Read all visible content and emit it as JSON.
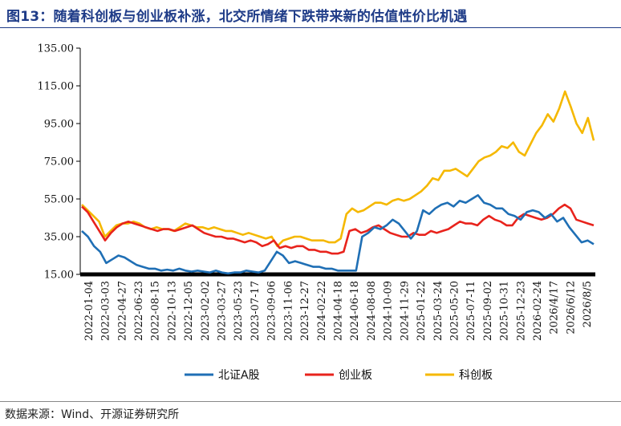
{
  "title": "图13：随着科创板与创业板补涨，北交所情绪下跌带来新的估值性价比机遇",
  "source": "数据来源：Wind、开源证券研究所",
  "chart_data": {
    "type": "line",
    "ylim": [
      15,
      135
    ],
    "yticks": [
      "15.00",
      "35.00",
      "55.00",
      "75.00",
      "95.00",
      "115.00",
      "135.00"
    ],
    "xticks": [
      "2022-01-04",
      "2022-03-03",
      "2022-04-27",
      "2022-06-23",
      "2022-08-15",
      "2022-10-13",
      "2022-12-05",
      "2023-02-02",
      "2023-03-27",
      "2023-05-23",
      "2023-07-17",
      "2023-09-06",
      "2023-11-06",
      "2023-12-27",
      "2024-02-22",
      "2024-04-18",
      "2024-06-18",
      "2024-08-08",
      "2024-10-09",
      "2024-11-29",
      "2025-01-22",
      "2025-03-24",
      "2025-05-20",
      "2025-07-11",
      "2025-09-02",
      "2025-10-31",
      "2025-12-23",
      "2026-02-24",
      "2026/4/17",
      "2026/6/12",
      "2026/8/5"
    ],
    "grid": false,
    "legend_position": "bottom",
    "series": [
      {
        "name": "北证A股",
        "color": "#1f6fb5",
        "values": [
          38,
          35,
          30,
          27,
          21,
          23,
          25,
          24,
          22,
          20,
          19,
          18,
          18,
          17,
          17.5,
          17,
          18,
          17,
          16.5,
          17,
          16.5,
          16,
          17,
          16,
          15.5,
          16,
          16,
          17,
          16.5,
          16,
          17,
          22,
          27,
          25,
          21,
          22,
          21,
          20,
          19,
          19,
          18,
          18,
          17,
          17,
          17,
          17,
          35,
          37,
          40,
          39,
          41,
          44,
          42,
          38,
          34,
          38,
          49,
          47,
          50,
          52,
          53,
          51,
          54,
          53,
          55,
          57,
          53,
          52,
          50,
          50,
          47,
          46,
          44,
          48,
          49,
          48,
          45,
          47,
          43,
          45,
          40,
          36,
          32,
          33,
          31
        ]
      },
      {
        "name": "创业板",
        "color": "#e8231c",
        "values": [
          51,
          48,
          43,
          38,
          33,
          37,
          40,
          42,
          43,
          42,
          41,
          40,
          39,
          38,
          39,
          39,
          38,
          39,
          40,
          41,
          39,
          37,
          36,
          35,
          35,
          34,
          34,
          33,
          32,
          33,
          32,
          30,
          31,
          33,
          29,
          30,
          29,
          30,
          30,
          28,
          28,
          27,
          27,
          26,
          26,
          27,
          38,
          39,
          37,
          38,
          40,
          41,
          39,
          37,
          36,
          35,
          35,
          37,
          36,
          36,
          38,
          37,
          38,
          39,
          41,
          43,
          42,
          42,
          41,
          44,
          46,
          44,
          43,
          41,
          41,
          45,
          47,
          46,
          45,
          44,
          45,
          47,
          50,
          52,
          50,
          44,
          43,
          42,
          41
        ]
      },
      {
        "name": "科创板",
        "color": "#f5b800",
        "values": [
          52,
          49,
          46,
          43,
          35,
          38,
          41,
          42,
          42,
          43,
          42,
          40,
          39,
          40,
          39,
          39,
          38,
          40,
          42,
          41,
          40,
          40,
          39,
          40,
          39,
          38,
          38,
          37,
          36,
          37,
          36,
          35,
          34,
          35,
          30,
          33,
          34,
          35,
          35,
          34,
          33,
          33,
          33,
          32,
          32,
          34,
          47,
          50,
          48,
          49,
          51,
          53,
          53,
          52,
          54,
          55,
          54,
          55,
          57,
          59,
          62,
          66,
          65,
          70,
          70,
          71,
          69,
          67,
          71,
          75,
          77,
          78,
          80,
          83,
          82,
          85,
          80,
          78,
          84,
          90,
          94,
          100,
          96,
          103,
          112,
          104,
          95,
          90,
          98,
          86
        ]
      }
    ]
  }
}
